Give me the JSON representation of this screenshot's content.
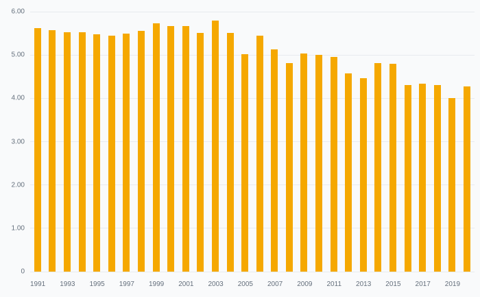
{
  "chart_data": {
    "type": "bar",
    "title": "",
    "xlabel": "",
    "ylabel": "",
    "categories": [
      "1991",
      "1992",
      "1993",
      "1994",
      "1995",
      "1996",
      "1997",
      "1998",
      "1999",
      "2000",
      "2001",
      "2002",
      "2003",
      "2004",
      "2005",
      "2006",
      "2007",
      "2008",
      "2009",
      "2010",
      "2011",
      "2012",
      "2013",
      "2014",
      "2015",
      "2016",
      "2017",
      "2018",
      "2019",
      "2020"
    ],
    "values": [
      5.62,
      5.57,
      5.52,
      5.53,
      5.48,
      5.45,
      5.49,
      5.55,
      5.73,
      5.67,
      5.66,
      5.51,
      5.79,
      5.51,
      5.02,
      5.44,
      5.13,
      4.82,
      5.03,
      5.0,
      4.95,
      4.58,
      4.46,
      4.81,
      4.8,
      4.3,
      4.34,
      4.31,
      4.0,
      4.28
    ],
    "ylim": [
      0,
      6
    ],
    "y_tick_values": [
      6,
      5,
      4,
      3,
      2,
      1,
      0
    ],
    "y_tick_labels": [
      "6.00",
      "5.00",
      "4.00",
      "3.00",
      "2.00",
      "1.00",
      "0"
    ],
    "x_tick_labels": [
      "1991",
      "1993",
      "1995",
      "1997",
      "1999",
      "2001",
      "2003",
      "2005",
      "2007",
      "2009",
      "2011",
      "2013",
      "2015",
      "2017",
      "2019"
    ],
    "grid": true,
    "legend": "none",
    "bar_color": "#F5A800",
    "background_color": "#f9fafb",
    "gridline_color": "#e8ebee",
    "label_color": "#646f7c"
  }
}
